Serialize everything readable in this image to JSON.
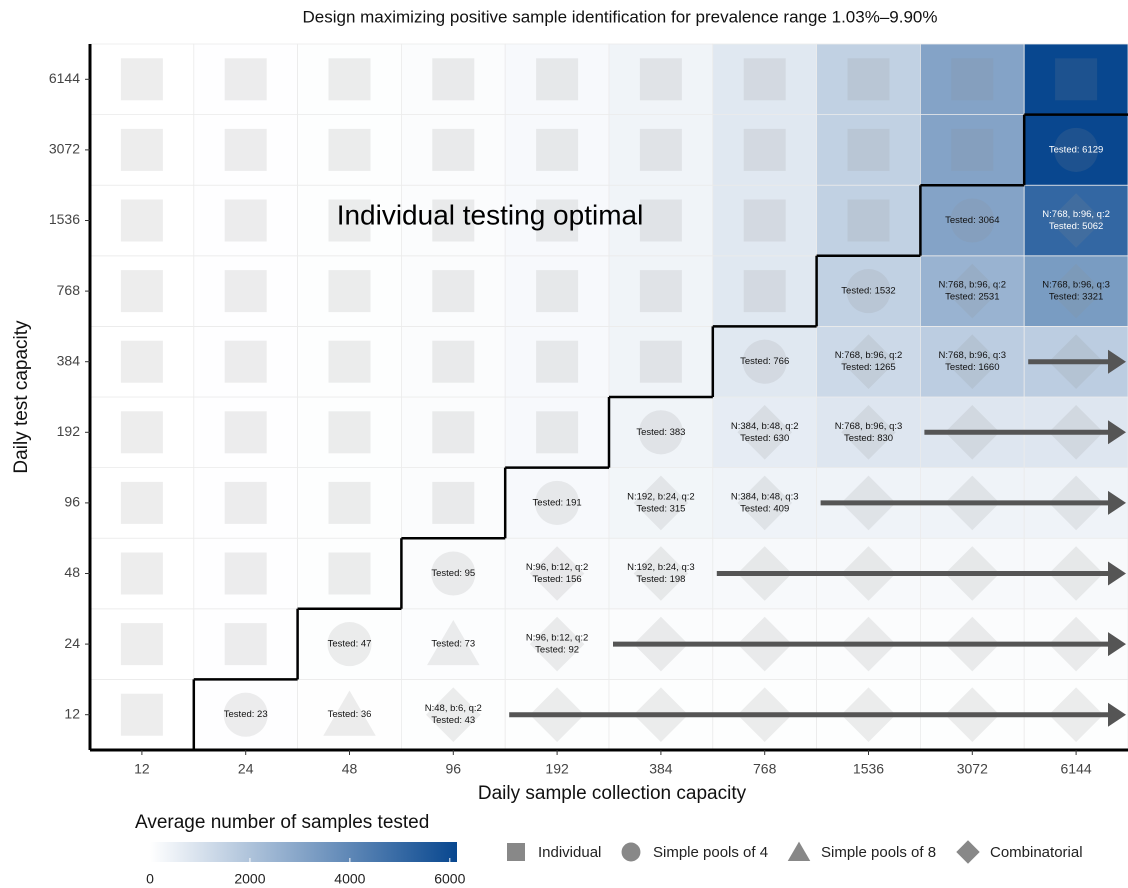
{
  "chart_data": {
    "type": "heatmap",
    "title": "Design maximizing positive sample identification for prevalence range 1.03%–9.90%",
    "x_label": "Daily sample collection capacity",
    "y_label": "Daily test capacity",
    "annotation": "Individual testing optimal",
    "x": [
      12,
      24,
      48,
      96,
      192,
      384,
      768,
      1536,
      3072,
      6144
    ],
    "y": [
      12,
      24,
      48,
      96,
      192,
      384,
      768,
      1536,
      3072,
      6144
    ],
    "values": [
      [
        12,
        23,
        36,
        43,
        43,
        43,
        43,
        43,
        43,
        43
      ],
      [
        12,
        24,
        47,
        73,
        92,
        92,
        92,
        92,
        92,
        92
      ],
      [
        12,
        24,
        48,
        95,
        156,
        198,
        198,
        198,
        198,
        198
      ],
      [
        12,
        24,
        48,
        96,
        191,
        315,
        409,
        409,
        409,
        409
      ],
      [
        12,
        24,
        48,
        96,
        192,
        383,
        630,
        830,
        830,
        830
      ],
      [
        12,
        24,
        48,
        96,
        192,
        384,
        766,
        1265,
        1660,
        1660
      ],
      [
        12,
        24,
        48,
        96,
        192,
        384,
        768,
        1532,
        2531,
        3321
      ],
      [
        12,
        24,
        48,
        96,
        192,
        384,
        768,
        1536,
        3064,
        5062
      ],
      [
        12,
        24,
        48,
        96,
        192,
        384,
        768,
        1536,
        3072,
        6129
      ],
      [
        12,
        24,
        48,
        96,
        192,
        384,
        768,
        1536,
        3072,
        6144
      ]
    ],
    "value_labels": [
      [
        null,
        [
          "Tested: 23"
        ],
        [
          "Tested: 36"
        ],
        [
          "N:48, b:6, q:2",
          "Tested: 43"
        ],
        null,
        null,
        null,
        null,
        null,
        null
      ],
      [
        null,
        null,
        [
          "Tested: 47"
        ],
        [
          "Tested: 73"
        ],
        [
          "N:96, b:12, q:2",
          "Tested: 92"
        ],
        null,
        null,
        null,
        null,
        null
      ],
      [
        null,
        null,
        null,
        [
          "Tested: 95"
        ],
        [
          "N:96, b:12, q:2",
          "Tested: 156"
        ],
        [
          "N:192, b:24, q:3",
          "Tested: 198"
        ],
        null,
        null,
        null,
        null
      ],
      [
        null,
        null,
        null,
        null,
        [
          "Tested: 191"
        ],
        [
          "N:192, b:24, q:2",
          "Tested: 315"
        ],
        [
          "N:384, b:48, q:3",
          "Tested: 409"
        ],
        null,
        null,
        null
      ],
      [
        null,
        null,
        null,
        null,
        null,
        [
          "Tested: 383"
        ],
        [
          "N:384, b:48, q:2",
          "Tested: 630"
        ],
        [
          "N:768, b:96, q:3",
          "Tested: 830"
        ],
        null,
        null
      ],
      [
        null,
        null,
        null,
        null,
        null,
        null,
        [
          "Tested: 766"
        ],
        [
          "N:768, b:96, q:2",
          "Tested: 1265"
        ],
        [
          "N:768, b:96, q:3",
          "Tested: 1660"
        ],
        null
      ],
      [
        null,
        null,
        null,
        null,
        null,
        null,
        null,
        [
          "Tested: 1532"
        ],
        [
          "N:768, b:96, q:2",
          "Tested: 2531"
        ],
        [
          "N:768, b:96, q:3",
          "Tested: 3321"
        ]
      ],
      [
        null,
        null,
        null,
        null,
        null,
        null,
        null,
        null,
        [
          "Tested: 3064"
        ],
        [
          "N:768, b:96, q:2",
          "Tested: 5062"
        ]
      ],
      [
        null,
        null,
        null,
        null,
        null,
        null,
        null,
        null,
        null,
        [
          "Tested: 6129"
        ]
      ],
      [
        null,
        null,
        null,
        null,
        null,
        null,
        null,
        null,
        null,
        null
      ]
    ],
    "shapes": [
      [
        "square",
        "circle",
        "triangle",
        "diamond",
        "diamond",
        "diamond",
        "diamond",
        "diamond",
        "diamond",
        "diamond"
      ],
      [
        "square",
        "square",
        "circle",
        "triangle",
        "diamond",
        "diamond",
        "diamond",
        "diamond",
        "diamond",
        "diamond"
      ],
      [
        "square",
        "square",
        "square",
        "circle",
        "diamond",
        "diamond",
        "diamond",
        "diamond",
        "diamond",
        "diamond"
      ],
      [
        "square",
        "square",
        "square",
        "square",
        "circle",
        "diamond",
        "diamond",
        "diamond",
        "diamond",
        "diamond"
      ],
      [
        "square",
        "square",
        "square",
        "square",
        "square",
        "circle",
        "diamond",
        "diamond",
        "diamond",
        "diamond"
      ],
      [
        "square",
        "square",
        "square",
        "square",
        "square",
        "square",
        "circle",
        "diamond",
        "diamond",
        "diamond"
      ],
      [
        "square",
        "square",
        "square",
        "square",
        "square",
        "square",
        "square",
        "circle",
        "diamond",
        "diamond"
      ],
      [
        "square",
        "square",
        "square",
        "square",
        "square",
        "square",
        "square",
        "square",
        "circle",
        "diamond"
      ],
      [
        "square",
        "square",
        "square",
        "square",
        "square",
        "square",
        "square",
        "square",
        "square",
        "circle"
      ],
      [
        "square",
        "square",
        "square",
        "square",
        "square",
        "square",
        "square",
        "square",
        "square",
        "square"
      ]
    ],
    "shape_legend": [
      {
        "name": "Individual",
        "shape": "square"
      },
      {
        "name": "Simple pools of 4",
        "shape": "circle"
      },
      {
        "name": "Simple pools of 8",
        "shape": "triangle"
      },
      {
        "name": "Combinatorial",
        "shape": "diamond"
      }
    ],
    "colorbar": {
      "title": "Average number of samples tested",
      "lim": [
        0,
        6144
      ],
      "ticks": [
        0,
        2000,
        4000,
        6000
      ],
      "colors": [
        "#ffffff",
        "#08478f"
      ]
    }
  }
}
